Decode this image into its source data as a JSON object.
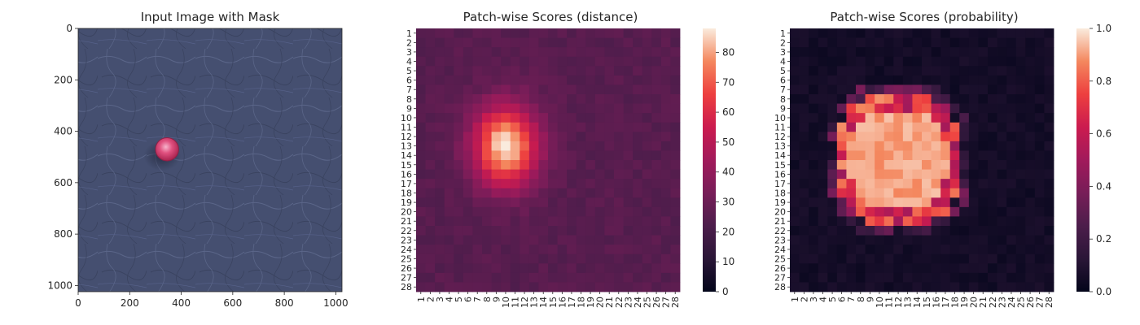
{
  "figure": {
    "panels": [
      {
        "title": "Input Image with Mask"
      },
      {
        "title": "Patch-wise Scores (distance)"
      },
      {
        "title": "Patch-wise Scores (probability)"
      }
    ]
  },
  "chart_data": [
    {
      "type": "image",
      "title": "Input Image with Mask",
      "xticks": [
        0,
        200,
        400,
        600,
        800,
        1000
      ],
      "yticks": [
        0,
        200,
        400,
        600,
        800,
        1000
      ],
      "xlim": [
        0,
        1024
      ],
      "ylim": [
        1024,
        0
      ],
      "content": "blue-grey textured leather surface with a single pink-red round defect",
      "defect": {
        "cx": 345,
        "cy": 470,
        "r": 45,
        "color": "#d64a7c"
      },
      "background_color": "#454f70"
    },
    {
      "type": "heatmap",
      "title": "Patch-wise Scores (distance)",
      "grid_size": 28,
      "tick_labels": [
        "1",
        "2",
        "3",
        "4",
        "5",
        "6",
        "7",
        "8",
        "9",
        "10",
        "11",
        "12",
        "13",
        "14",
        "15",
        "16",
        "17",
        "18",
        "19",
        "20",
        "21",
        "22",
        "23",
        "24",
        "25",
        "26",
        "27",
        "28"
      ],
      "colorbar": {
        "min": 0,
        "max": 88,
        "ticks": [
          0,
          10,
          20,
          30,
          40,
          50,
          60,
          70,
          80
        ],
        "colormap": "rocket"
      },
      "summary": {
        "baseline": 25,
        "peak": {
          "row": 13,
          "col": 10,
          "value": 88
        },
        "sigma": 2.4,
        "vertical_stretch": 1.25,
        "note": "Smooth blob centred around rows 12-15, cols 9-10; remaining patches ~20-30"
      }
    },
    {
      "type": "heatmap",
      "title": "Patch-wise Scores (probability)",
      "grid_size": 28,
      "tick_labels": [
        "1",
        "2",
        "3",
        "4",
        "5",
        "6",
        "7",
        "8",
        "9",
        "10",
        "11",
        "12",
        "13",
        "14",
        "15",
        "16",
        "17",
        "18",
        "19",
        "20",
        "21",
        "22",
        "23",
        "24",
        "25",
        "26",
        "27",
        "28"
      ],
      "colorbar": {
        "min": 0.0,
        "max": 1.0,
        "ticks": [
          0.0,
          0.2,
          0.4,
          0.6,
          0.8,
          1.0
        ],
        "tick_labels": [
          "0.0",
          "0.2",
          "0.4",
          "0.6",
          "0.8",
          "1.0"
        ],
        "colormap": "rocket"
      },
      "summary": {
        "high_region_rows": [
          7,
          22
        ],
        "high_region_cols": [
          5,
          19
        ],
        "core_value": 0.95,
        "edge_value": 0.6,
        "outside_value": 0.03,
        "note": "Large bright square-ish region (~0.9-1.0) rows 8-20, cols 6-16, ragged edges ~0.3-0.7, rest ~0.0-0.1"
      }
    }
  ]
}
